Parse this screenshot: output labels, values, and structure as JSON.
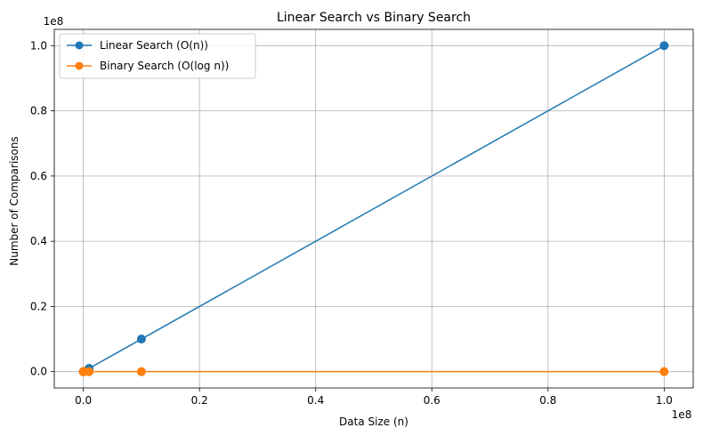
{
  "chart_data": {
    "type": "line",
    "title": "Linear Search vs Binary Search",
    "xlabel": "Data Size (n)",
    "ylabel": "Number of Comparisons",
    "x_offset_label": "1e8",
    "y_offset_label": "1e8",
    "xlim": [
      -5000000,
      105000000
    ],
    "ylim": [
      -5000000,
      105000000
    ],
    "xticks": [
      0,
      20000000,
      40000000,
      60000000,
      80000000,
      100000000
    ],
    "xtick_labels": [
      "0.0",
      "0.2",
      "0.4",
      "0.6",
      "0.8",
      "1.0"
    ],
    "yticks": [
      0,
      20000000,
      40000000,
      60000000,
      80000000,
      100000000
    ],
    "ytick_labels": [
      "0.0",
      "0.2",
      "0.4",
      "0.6",
      "0.8",
      "1.0"
    ],
    "grid": true,
    "legend_position": "top-left",
    "x": [
      10,
      100,
      1000,
      10000,
      100000,
      1000000,
      10000000,
      100000000
    ],
    "series": [
      {
        "name": "Linear Search (O(n))",
        "color": "#1f77b4",
        "values": [
          10,
          100,
          1000,
          10000,
          100000,
          1000000,
          10000000,
          100000000
        ]
      },
      {
        "name": "Binary Search (O(log n))",
        "color": "#ff7f0e",
        "values": [
          3.32,
          6.64,
          9.97,
          13.29,
          16.61,
          19.93,
          23.25,
          26.58
        ]
      }
    ]
  }
}
